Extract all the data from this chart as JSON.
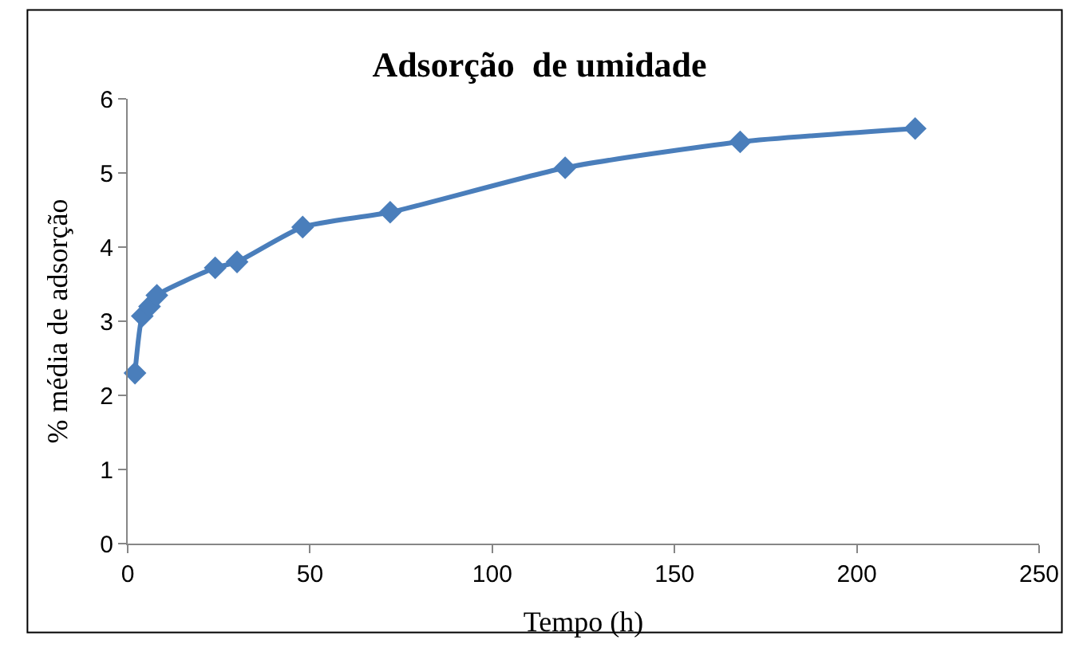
{
  "chart_data": {
    "type": "line",
    "title": "Adsorção  de umidade",
    "xlabel": "Tempo (h)",
    "ylabel": "% média de adsorção",
    "x": [
      2,
      4,
      6,
      8,
      24,
      30,
      48,
      72,
      120,
      168,
      216
    ],
    "series": [
      {
        "color": "#4a7ebb",
        "values": [
          2.3,
          3.07,
          3.2,
          3.35,
          3.72,
          3.8,
          4.27,
          4.47,
          5.07,
          5.42,
          5.6
        ]
      }
    ],
    "xlim": [
      0,
      250
    ],
    "xticks": [
      0,
      50,
      100,
      150,
      200,
      250
    ],
    "ylim": [
      0,
      6
    ],
    "yticks": [
      0,
      1,
      2,
      3,
      4,
      5,
      6
    ],
    "grid": false,
    "legend": false,
    "marker": "diamond",
    "line_style": "solid"
  }
}
